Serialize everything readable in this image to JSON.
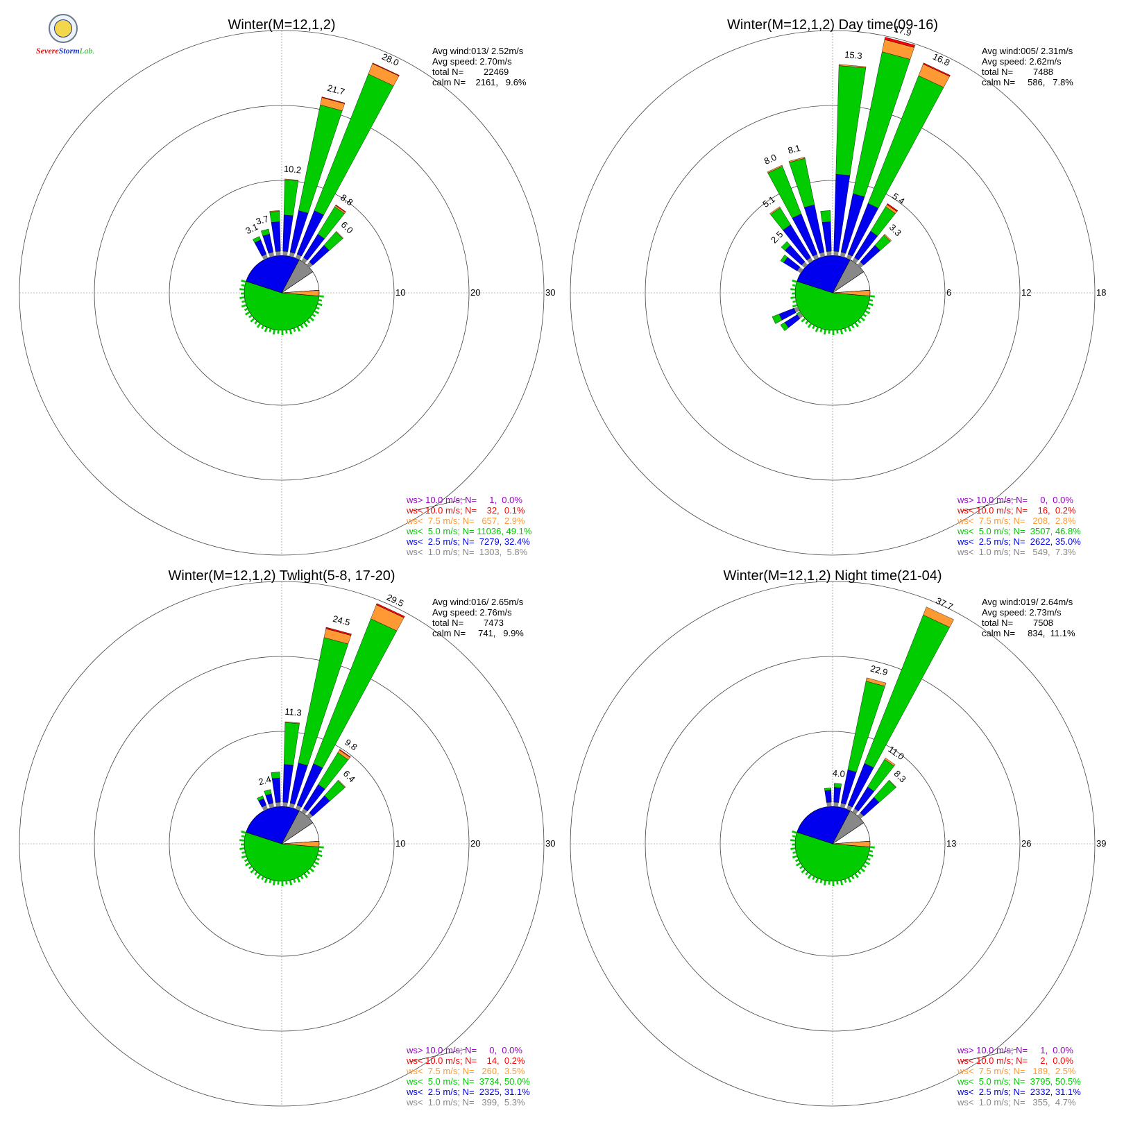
{
  "logo": {
    "text_parts": [
      "Severe",
      "Storm",
      "Lab."
    ]
  },
  "legend_colors": {
    "gt10": "#9a00c8",
    "lt10": "#ff0000",
    "lt75": "#ff9933",
    "lt50": "#00cc00",
    "lt25": "#0000ee",
    "lt10ms": "#888888",
    "calm_box": "#ffffff"
  },
  "chart_data": [
    {
      "type": "windrose",
      "title": "Winter(M=12,1,2)",
      "rings": [
        10,
        20,
        30
      ],
      "ring_labels": [
        "10",
        "20",
        "30"
      ],
      "stats": [
        "Avg wind:013/ 2.52m/s",
        "Avg speed: 2.70m/s",
        "total N=        22469",
        "calm N=    2161,   9.6%"
      ],
      "bar_labels": [
        {
          "dir": 5,
          "value": "10.2"
        },
        {
          "dir": 15,
          "value": "21.7"
        },
        {
          "dir": 25,
          "value": "28.0"
        },
        {
          "dir": 35,
          "value": "8.8"
        },
        {
          "dir": 45,
          "value": "6.0"
        },
        {
          "dir": 345,
          "value": "3.7"
        },
        {
          "dir": 335,
          "value": "3.1"
        }
      ],
      "bars": [
        {
          "dir": 5,
          "total": 10.2,
          "blue": 5.4,
          "green": 4.7,
          "orange": 0.1,
          "red": 0.0
        },
        {
          "dir": 15,
          "total": 21.7,
          "blue": 6.2,
          "green": 14.4,
          "orange": 1.0,
          "red": 0.1
        },
        {
          "dir": 25,
          "total": 28.0,
          "blue": 6.8,
          "green": 19.6,
          "orange": 1.5,
          "red": 0.1
        },
        {
          "dir": 35,
          "total": 8.8,
          "blue": 4.2,
          "green": 4.3,
          "orange": 0.2,
          "red": 0.1
        },
        {
          "dir": 45,
          "total": 6.0,
          "blue": 3.5,
          "green": 2.4,
          "orange": 0.1,
          "red": 0.0
        },
        {
          "dir": 355,
          "total": 6.0,
          "blue": 4.5,
          "green": 1.4,
          "orange": 0.1,
          "red": 0.0
        },
        {
          "dir": 345,
          "total": 3.7,
          "blue": 3.0,
          "green": 0.7,
          "orange": 0.0,
          "red": 0.0
        },
        {
          "dir": 335,
          "total": 3.1,
          "blue": 2.6,
          "green": 0.5,
          "orange": 0.0,
          "red": 0.0
        }
      ],
      "legend": [
        {
          "key": "gt10",
          "text": "ws> 10.0 m/s; N=     1,  0.0%"
        },
        {
          "key": "lt10",
          "text": "ws< 10.0 m/s; N=    32,  0.1%"
        },
        {
          "key": "lt75",
          "text": "ws<  7.5 m/s; N=   657,  2.9%"
        },
        {
          "key": "lt50",
          "text": "ws<  5.0 m/s; N= 11036, 49.1%"
        },
        {
          "key": "lt25",
          "text": "ws<  2.5 m/s; N=  7279, 32.4%"
        },
        {
          "key": "lt10ms",
          "text": "ws<  1.0 m/s; N=  1303,  5.8%"
        }
      ]
    },
    {
      "type": "windrose",
      "title": "Winter(M=12,1,2) Day time(09-16)",
      "rings": [
        6,
        12,
        18
      ],
      "ring_labels": [
        "6",
        "12",
        "18"
      ],
      "stats": [
        "Avg wind:005/ 2.31m/s",
        "Avg speed: 2.62m/s",
        "total N=        7488",
        "calm N=     586,   7.8%"
      ],
      "bar_labels": [
        {
          "dir": 5,
          "value": "15.3"
        },
        {
          "dir": 15,
          "value": "17.9"
        },
        {
          "dir": 25,
          "value": "16.8"
        },
        {
          "dir": 35,
          "value": "5.4"
        },
        {
          "dir": 45,
          "value": "3.3"
        },
        {
          "dir": 345,
          "value": "8.1"
        },
        {
          "dir": 335,
          "value": "8.0"
        },
        {
          "dir": 325,
          "value": "5.1"
        },
        {
          "dir": 315,
          "value": "2.5"
        }
      ],
      "bars": [
        {
          "dir": 5,
          "total": 15.3,
          "blue": 6.5,
          "green": 8.7,
          "orange": 0.1,
          "red": 0.0
        },
        {
          "dir": 15,
          "total": 17.9,
          "blue": 5.1,
          "green": 11.6,
          "orange": 1.0,
          "red": 0.2
        },
        {
          "dir": 25,
          "total": 16.8,
          "blue": 4.7,
          "green": 11.0,
          "orange": 1.0,
          "red": 0.1
        },
        {
          "dir": 35,
          "total": 5.4,
          "blue": 2.8,
          "green": 2.3,
          "orange": 0.2,
          "red": 0.1
        },
        {
          "dir": 45,
          "total": 3.3,
          "blue": 2.1,
          "green": 1.1,
          "orange": 0.1,
          "red": 0.0
        },
        {
          "dir": 355,
          "total": 3.6,
          "blue": 2.7,
          "green": 0.9,
          "orange": 0.0,
          "red": 0.0
        },
        {
          "dir": 345,
          "total": 8.1,
          "blue": 4.2,
          "green": 3.8,
          "orange": 0.1,
          "red": 0.0
        },
        {
          "dir": 335,
          "total": 8.0,
          "blue": 3.8,
          "green": 4.1,
          "orange": 0.1,
          "red": 0.0
        },
        {
          "dir": 325,
          "total": 5.1,
          "blue": 3.4,
          "green": 1.6,
          "orange": 0.1,
          "red": 0.0
        },
        {
          "dir": 315,
          "total": 2.5,
          "blue": 2.1,
          "green": 0.4,
          "orange": 0.0,
          "red": 0.0
        },
        {
          "dir": 305,
          "total": 1.9,
          "blue": 1.6,
          "green": 0.3,
          "orange": 0.0,
          "red": 0.0
        },
        {
          "dir": 245,
          "total": 2.2,
          "blue": 1.6,
          "green": 0.6,
          "orange": 0.0,
          "red": 0.0
        },
        {
          "dir": 235,
          "total": 1.9,
          "blue": 1.5,
          "green": 0.4,
          "orange": 0.0,
          "red": 0.0
        }
      ],
      "legend": [
        {
          "key": "gt10",
          "text": "ws> 10.0 m/s; N=     0,  0.0%"
        },
        {
          "key": "lt10",
          "text": "ws< 10.0 m/s; N=    16,  0.2%"
        },
        {
          "key": "lt75",
          "text": "ws<  7.5 m/s; N=   208,  2.8%"
        },
        {
          "key": "lt50",
          "text": "ws<  5.0 m/s; N=  3507, 46.8%"
        },
        {
          "key": "lt25",
          "text": "ws<  2.5 m/s; N=  2622, 35.0%"
        },
        {
          "key": "lt10ms",
          "text": "ws<  1.0 m/s; N=   549,  7.3%"
        }
      ]
    },
    {
      "type": "windrose",
      "title": "Winter(M=12,1,2) Twlight(5-8, 17-20)",
      "rings": [
        10,
        20,
        30
      ],
      "ring_labels": [
        "10",
        "20",
        "30"
      ],
      "stats": [
        "Avg wind:016/ 2.65m/s",
        "Avg speed: 2.76m/s",
        "total N=        7473",
        "calm N=     741,   9.9%"
      ],
      "bar_labels": [
        {
          "dir": 5,
          "value": "11.3"
        },
        {
          "dir": 15,
          "value": "24.5"
        },
        {
          "dir": 25,
          "value": "29.5"
        },
        {
          "dir": 35,
          "value": "9.8"
        },
        {
          "dir": 45,
          "value": "6.4"
        },
        {
          "dir": 345,
          "value": "2.4"
        }
      ],
      "bars": [
        {
          "dir": 5,
          "total": 11.3,
          "blue": 5.6,
          "green": 5.6,
          "orange": 0.1,
          "red": 0.0
        },
        {
          "dir": 15,
          "total": 24.5,
          "blue": 6.0,
          "green": 17.1,
          "orange": 1.2,
          "red": 0.2
        },
        {
          "dir": 25,
          "total": 29.5,
          "blue": 6.5,
          "green": 20.8,
          "orange": 2.0,
          "red": 0.2
        },
        {
          "dir": 35,
          "total": 9.8,
          "blue": 4.3,
          "green": 5.0,
          "orange": 0.4,
          "red": 0.1
        },
        {
          "dir": 45,
          "total": 6.4,
          "blue": 3.6,
          "green": 2.7,
          "orange": 0.1,
          "red": 0.0
        },
        {
          "dir": 355,
          "total": 4.6,
          "blue": 3.8,
          "green": 0.8,
          "orange": 0.0,
          "red": 0.0
        },
        {
          "dir": 345,
          "total": 2.4,
          "blue": 1.8,
          "green": 0.6,
          "orange": 0.0,
          "red": 0.0
        },
        {
          "dir": 335,
          "total": 1.9,
          "blue": 1.5,
          "green": 0.4,
          "orange": 0.0,
          "red": 0.0
        }
      ],
      "legend": [
        {
          "key": "gt10",
          "text": "ws> 10.0 m/s; N=     0,  0.0%"
        },
        {
          "key": "lt10",
          "text": "ws< 10.0 m/s; N=    14,  0.2%"
        },
        {
          "key": "lt75",
          "text": "ws<  7.5 m/s; N=   260,  3.5%"
        },
        {
          "key": "lt50",
          "text": "ws<  5.0 m/s; N=  3734, 50.0%"
        },
        {
          "key": "lt25",
          "text": "ws<  2.5 m/s; N=  2325, 31.1%"
        },
        {
          "key": "lt10ms",
          "text": "ws<  1.0 m/s; N=   399,  5.3%"
        }
      ]
    },
    {
      "type": "windrose",
      "title": "Winter(M=12,1,2) Night time(21-04)",
      "rings": [
        13,
        26,
        39
      ],
      "ring_labels": [
        "13",
        "26",
        "39"
      ],
      "stats": [
        "Avg wind:019/ 2.64m/s",
        "Avg speed: 2.73m/s",
        "total N=        7508",
        "calm N=     834,  11.1%"
      ],
      "bar_labels": [
        {
          "dir": 5,
          "value": "4.0"
        },
        {
          "dir": 15,
          "value": "22.9"
        },
        {
          "dir": 25,
          "value": "37.7"
        },
        {
          "dir": 35,
          "value": "11.0"
        },
        {
          "dir": 45,
          "value": "8.3"
        }
      ],
      "bars": [
        {
          "dir": 5,
          "total": 4.0,
          "blue": 3.3,
          "green": 0.7,
          "orange": 0.0,
          "red": 0.0
        },
        {
          "dir": 15,
          "total": 22.9,
          "blue": 6.6,
          "green": 15.7,
          "orange": 0.6,
          "red": 0.0
        },
        {
          "dir": 25,
          "total": 37.7,
          "blue": 8.5,
          "green": 27.7,
          "orange": 1.5,
          "red": 0.0
        },
        {
          "dir": 35,
          "total": 11.0,
          "blue": 5.1,
          "green": 5.6,
          "orange": 0.3,
          "red": 0.0
        },
        {
          "dir": 45,
          "total": 8.3,
          "blue": 4.3,
          "green": 3.9,
          "orange": 0.1,
          "red": 0.0
        },
        {
          "dir": 355,
          "total": 3.2,
          "blue": 2.8,
          "green": 0.4,
          "orange": 0.0,
          "red": 0.0
        }
      ],
      "legend": [
        {
          "key": "gt10",
          "text": "ws> 10.0 m/s; N=     1,  0.0%"
        },
        {
          "key": "lt10",
          "text": "ws< 10.0 m/s; N=     2,  0.0%"
        },
        {
          "key": "lt75",
          "text": "ws<  7.5 m/s; N=   189,  2.5%"
        },
        {
          "key": "lt50",
          "text": "ws<  5.0 m/s; N=  3795, 50.5%"
        },
        {
          "key": "lt25",
          "text": "ws<  2.5 m/s; N=  2332, 31.1%"
        },
        {
          "key": "lt10ms",
          "text": "ws<  1.0 m/s; N=   355,  4.7%"
        }
      ]
    }
  ]
}
